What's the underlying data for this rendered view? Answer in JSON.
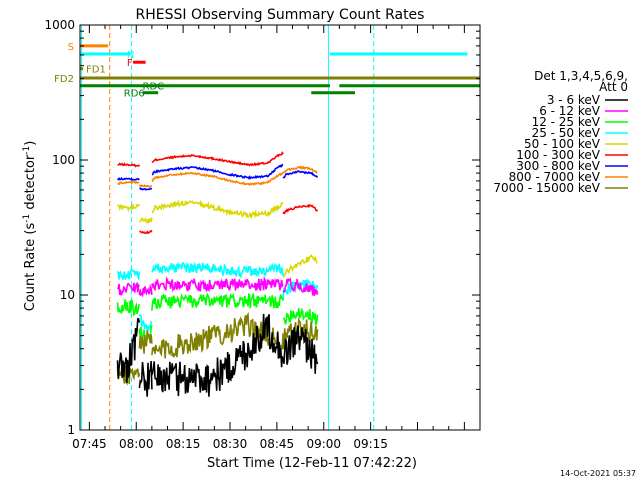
{
  "chart_data": {
    "type": "line",
    "title": "RHESSI Observing Summary Count Rates",
    "xlabel": "Start Time (12-Feb-11 07:42:22)",
    "ylabel_main": "Count Rate (s",
    "ylabel_sup1": "-1",
    "ylabel_mid": " detector",
    "ylabel_sup2": "-1",
    "ylabel_end": ")",
    "footer": "14-Oct-2021 05:37",
    "x_range_min": [
      42,
      170
    ],
    "y_range": [
      1,
      1000
    ],
    "y_scale": "log",
    "x_ticks": [
      {
        "min": 45,
        "label": "07:45"
      },
      {
        "min": 60,
        "label": "08:00"
      },
      {
        "min": 75,
        "label": "08:15"
      },
      {
        "min": 90,
        "label": "08:30"
      },
      {
        "min": 105,
        "label": "08:45"
      },
      {
        "min": 120,
        "label": "09:00"
      },
      {
        "min": 135,
        "label": "09:15"
      }
    ],
    "y_ticks": [
      {
        "value": 1,
        "label": "1"
      },
      {
        "value": 10,
        "label": "10"
      },
      {
        "value": 100,
        "label": "100"
      },
      {
        "value": 1000,
        "label": "1000"
      }
    ],
    "legend": {
      "header1": "Det 1,3,4,5,6,9,",
      "header2": "Att 0",
      "entries": [
        {
          "label": "3 - 6 keV",
          "color": "#000000"
        },
        {
          "label": "6 - 12 keV",
          "color": "#ff00ff"
        },
        {
          "label": "12 - 25 keV",
          "color": "#00ff00"
        },
        {
          "label": "25 - 50 keV",
          "color": "#00ffff"
        },
        {
          "label": "50 - 100 keV",
          "color": "#d8d800"
        },
        {
          "label": "100 - 300 keV",
          "color": "#ff0000"
        },
        {
          "label": "300 - 800 keV",
          "color": "#0000ff"
        },
        {
          "label": "800 - 7000 keV",
          "color": "#ff8000"
        },
        {
          "label": "7000 - 15000 keV",
          "color": "#808000"
        }
      ]
    },
    "flags": [
      {
        "label": "S",
        "color": "#ff8000",
        "y": 700,
        "segments": [
          [
            42,
            51
          ]
        ]
      },
      {
        "label": "N",
        "color": "#00ffff",
        "y": 610,
        "segments": [
          [
            42,
            58
          ],
          [
            122,
            166
          ]
        ]
      },
      {
        "label": "F",
        "color": "#ff0000",
        "y": 530,
        "segments": [
          [
            59,
            63
          ]
        ]
      },
      {
        "label": "FD1",
        "color": "#808000",
        "y": 475,
        "segments": [
          [
            42,
            43
          ]
        ]
      },
      {
        "label": "FD2",
        "color": "#808000",
        "y": 405,
        "segments": [
          [
            42,
            170
          ]
        ]
      },
      {
        "label": "RDC",
        "color": "#008000",
        "y": 355,
        "segments": [
          [
            42,
            122
          ],
          [
            125,
            170
          ]
        ]
      },
      {
        "label": "RD6",
        "color": "#008000",
        "y": 315,
        "segments": [
          [
            62,
            67
          ],
          [
            116,
            130
          ]
        ]
      }
    ],
    "vlines": [
      {
        "min": 42.5,
        "color": "#00ffff",
        "style": "solid"
      },
      {
        "min": 51.5,
        "color": "#ff8000",
        "style": "dashed"
      },
      {
        "min": 58.5,
        "color": "#00ffff",
        "style": "dashed"
      },
      {
        "min": 121.5,
        "color": "#00ffff",
        "style": "solid"
      },
      {
        "min": 136,
        "color": "#00ffff",
        "style": "dashed"
      }
    ],
    "series": [
      {
        "name": "100 - 300 keV",
        "color": "#ff0000",
        "noise": 0.015,
        "segments": [
          {
            "x": [
              54,
              55,
              60,
              61
            ],
            "y": [
              92,
              93,
              91,
              90
            ]
          },
          {
            "x": [
              61,
              62,
              64,
              65
            ],
            "y": [
              30,
              29,
              29,
              30
            ]
          },
          {
            "x": [
              65,
              66,
              72,
              78,
              84,
              90,
              96,
              102,
              106,
              107
            ],
            "y": [
              95,
              100,
              105,
              108,
              103,
              97,
              92,
              95,
              110,
              112
            ]
          },
          {
            "x": [
              107,
              108,
              112,
              116,
              118
            ],
            "y": [
              40,
              42,
              45,
              46,
              42
            ]
          }
        ]
      },
      {
        "name": "300 - 800 keV",
        "color": "#0000ff",
        "noise": 0.015,
        "segments": [
          {
            "x": [
              54,
              56,
              60,
              61
            ],
            "y": [
              72,
              73,
              72,
              72
            ]
          },
          {
            "x": [
              61,
              62,
              64,
              65
            ],
            "y": [
              62,
              61,
              61,
              62
            ]
          },
          {
            "x": [
              65,
              66,
              72,
              78,
              84,
              90,
              96,
              102,
              106,
              107
            ],
            "y": [
              78,
              82,
              86,
              88,
              84,
              78,
              74,
              76,
              90,
              92
            ]
          },
          {
            "x": [
              107,
              108,
              112,
              116,
              118
            ],
            "y": [
              74,
              78,
              82,
              80,
              75
            ]
          }
        ]
      },
      {
        "name": "800 - 7000 keV",
        "color": "#ff8000",
        "noise": 0.015,
        "segments": [
          {
            "x": [
              54,
              56,
              60,
              61
            ],
            "y": [
              67,
              68,
              68,
              67
            ]
          },
          {
            "x": [
              61,
              62,
              64,
              65
            ],
            "y": [
              65,
              64,
              64,
              65
            ]
          },
          {
            "x": [
              65,
              66,
              72,
              78,
              84,
              90,
              96,
              102,
              106,
              107
            ],
            "y": [
              70,
              74,
              78,
              80,
              76,
              70,
              66,
              68,
              78,
              80
            ]
          },
          {
            "x": [
              107,
              108,
              112,
              116,
              118
            ],
            "y": [
              80,
              84,
              88,
              86,
              80
            ]
          }
        ]
      },
      {
        "name": "50 - 100 keV",
        "color": "#d8d800",
        "noise": 0.04,
        "segments": [
          {
            "x": [
              54,
              57,
              60,
              61
            ],
            "y": [
              45,
              44,
              45,
              45
            ]
          },
          {
            "x": [
              61,
              62,
              64,
              65
            ],
            "y": [
              36,
              36,
              35,
              36
            ]
          },
          {
            "x": [
              65,
              66,
              72,
              78,
              84,
              90,
              96,
              102,
              106,
              107
            ],
            "y": [
              42,
              44,
              47,
              48,
              45,
              41,
              39,
              40,
              46,
              48
            ]
          },
          {
            "x": [
              107,
              108,
              112,
              116,
              118
            ],
            "y": [
              14,
              15,
              17,
              19,
              18
            ]
          }
        ]
      },
      {
        "name": "25 - 50 keV",
        "color": "#00ffff",
        "noise": 0.09,
        "segments": [
          {
            "x": [
              54,
              57,
              60,
              61
            ],
            "y": [
              14,
              14,
              15,
              14
            ]
          },
          {
            "x": [
              61,
              62,
              64,
              65
            ],
            "y": [
              7,
              6,
              6,
              6.5
            ]
          },
          {
            "x": [
              65,
              66,
              72,
              78,
              84,
              90,
              96,
              102,
              106,
              107
            ],
            "y": [
              15,
              16,
              16,
              16,
              16,
              15,
              15,
              15,
              16,
              15
            ]
          },
          {
            "x": [
              107,
              108,
              112,
              116,
              118
            ],
            "y": [
              10,
              11,
              12,
              12,
              11
            ]
          }
        ]
      },
      {
        "name": "6 - 12 keV",
        "color": "#ff00ff",
        "noise": 0.1,
        "segments": [
          {
            "x": [
              54,
              57,
              60,
              61
            ],
            "y": [
              11,
              11,
              11.5,
              11
            ]
          },
          {
            "x": [
              61,
              62,
              64,
              65
            ],
            "y": [
              11,
              11,
              11,
              11
            ]
          },
          {
            "x": [
              65,
              66,
              72,
              78,
              84,
              90,
              96,
              102,
              106,
              107
            ],
            "y": [
              12,
              12,
              12,
              12,
              12,
              12,
              12,
              12,
              12,
              12
            ]
          },
          {
            "x": [
              107,
              108,
              112,
              116,
              118
            ],
            "y": [
              11,
              12,
              12,
              11,
              10
            ]
          }
        ]
      },
      {
        "name": "12 - 25 keV",
        "color": "#00ff00",
        "noise": 0.12,
        "segments": [
          {
            "x": [
              54,
              57,
              60,
              61
            ],
            "y": [
              8,
              8.5,
              8,
              8
            ]
          },
          {
            "x": [
              61,
              62,
              64,
              65
            ],
            "y": [
              5.5,
              5,
              5,
              5.5
            ]
          },
          {
            "x": [
              65,
              66,
              72,
              78,
              84,
              90,
              96,
              102,
              106,
              107
            ],
            "y": [
              8.5,
              9,
              9,
              9,
              9,
              9,
              9,
              9,
              9,
              9
            ]
          },
          {
            "x": [
              107,
              108,
              112,
              116,
              118
            ],
            "y": [
              6.5,
              7,
              7.5,
              7,
              6.5
            ]
          }
        ]
      },
      {
        "name": "7000 - 15000 keV",
        "color": "#808000",
        "noise": 0.2,
        "segments": [
          {
            "x": [
              54,
              57,
              60,
              61
            ],
            "y": [
              2.6,
              2.7,
              2.6,
              2.6
            ]
          },
          {
            "x": [
              61,
              62,
              64,
              65
            ],
            "y": [
              4.5,
              4.5,
              4.6,
              4.5
            ]
          },
          {
            "x": [
              65,
              66,
              72,
              78,
              84,
              90,
              96,
              102,
              106,
              107
            ],
            "y": [
              3.5,
              3.8,
              4.2,
              4.6,
              5,
              5.5,
              6,
              5,
              4.5,
              4.5
            ]
          },
          {
            "x": [
              107,
              108,
              112,
              116,
              118
            ],
            "y": [
              4.5,
              5,
              5.5,
              5.5,
              5
            ]
          }
        ]
      },
      {
        "name": "3 - 6 keV",
        "color": "#000000",
        "noise": 0.3,
        "segments": [
          {
            "x": [
              54,
              57,
              60,
              61
            ],
            "y": [
              3,
              3,
              5,
              7
            ]
          },
          {
            "x": [
              61,
              62,
              64,
              65
            ],
            "y": [
              2,
              2.5,
              2.5,
              2.5
            ]
          },
          {
            "x": [
              65,
              66,
              72,
              78,
              84,
              90,
              96,
              102,
              106,
              107
            ],
            "y": [
              2.5,
              2.5,
              2.5,
              2.5,
              2.5,
              3,
              4,
              6,
              4,
              4
            ]
          },
          {
            "x": [
              107,
              108,
              112,
              116,
              118
            ],
            "y": [
              3,
              4,
              5,
              4,
              3
            ]
          }
        ]
      }
    ]
  }
}
